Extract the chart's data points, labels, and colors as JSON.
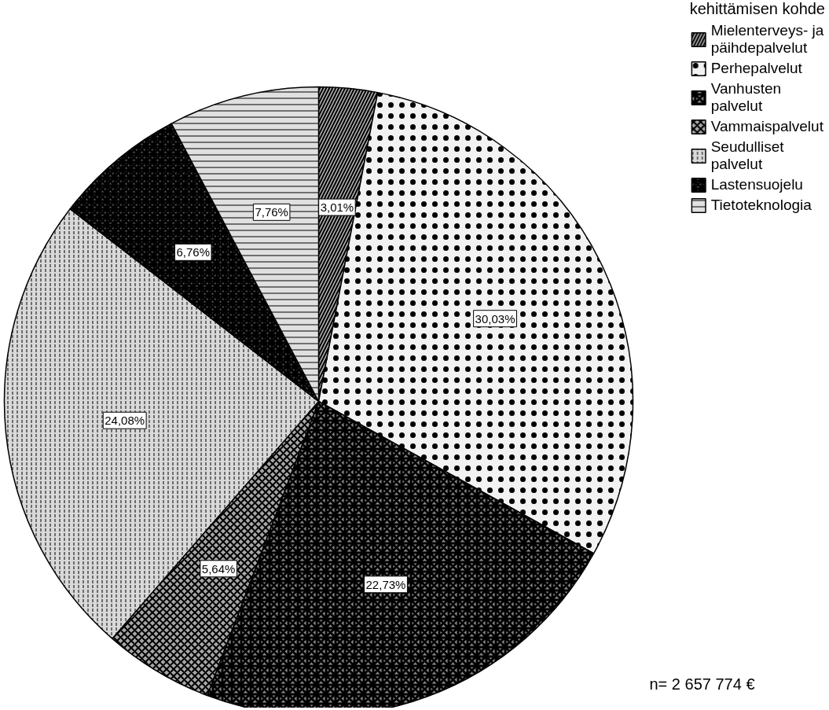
{
  "chart_data": {
    "type": "pie",
    "legend_title": "kehittämisen kohde",
    "legend": "top right",
    "categories": [
      "Mielenterveys- ja päihdepalvelut",
      "Perhepalvelut",
      "Vanhusten palvelut",
      "Vammaispalvelut",
      "Seudulliset palvelut",
      "Lastensuojelu",
      "Tietoteknologia"
    ],
    "values": [
      3.01,
      30.03,
      22.73,
      5.64,
      24.08,
      6.76,
      7.76
    ],
    "value_labels": [
      "3,01%",
      "30,03%",
      "22,73%",
      "5,64%",
      "24,08%",
      "6,76%",
      "7,76%"
    ],
    "colors": [
      "#b3b3b3",
      "#f2f2f2",
      "#8c8c8c",
      "#a6a6a6",
      "#d9d9d9",
      "#595959",
      "#e0e0e0"
    ],
    "annotations": [
      "n= 2 657 774 €"
    ]
  }
}
